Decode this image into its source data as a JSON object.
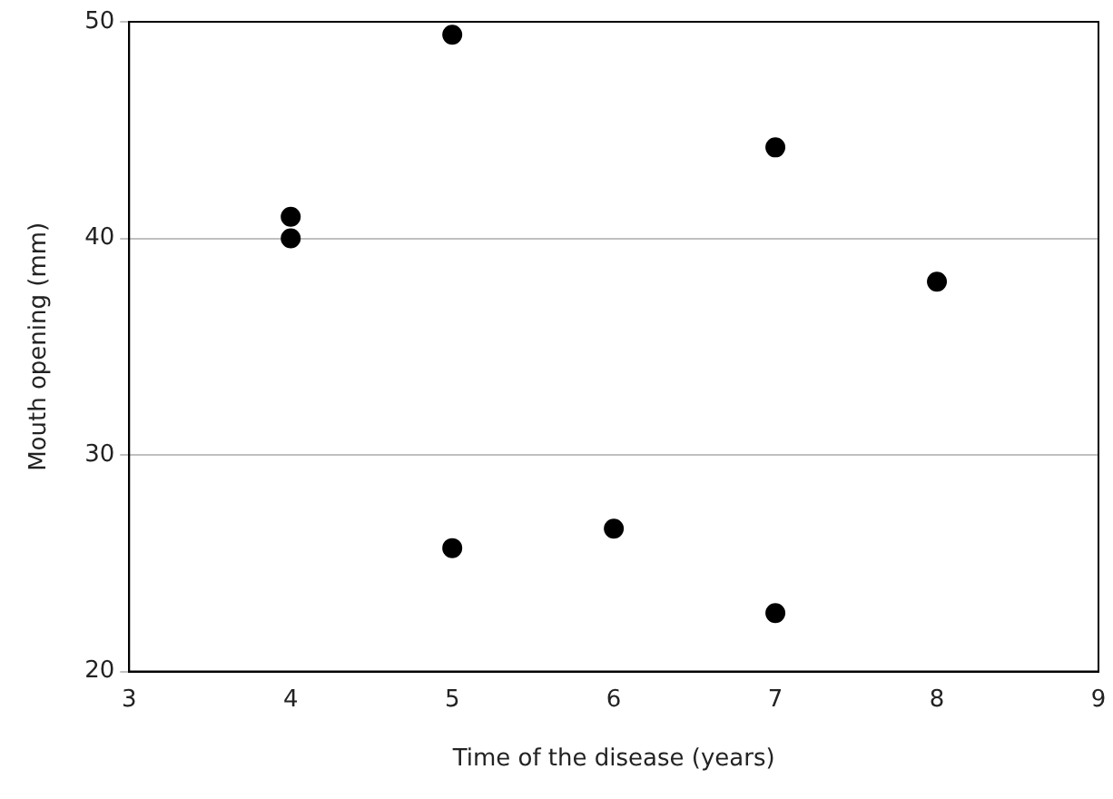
{
  "chart_data": {
    "type": "scatter",
    "xlabel": "Time of the disease (years)",
    "ylabel": "Mouth opening (mm)",
    "x": [
      4,
      4,
      5,
      5,
      6,
      7,
      7,
      8
    ],
    "series": [
      {
        "color": "#000000",
        "values": [
          41,
          40,
          49.4,
          25.7,
          26.6,
          44.2,
          22.7,
          38
        ]
      }
    ],
    "xlim": [
      3,
      9
    ],
    "xticks": [
      3,
      4,
      5,
      6,
      7,
      8,
      9
    ],
    "ylim": [
      20,
      50
    ],
    "yticks": [
      20,
      30,
      40,
      50
    ],
    "grid": "y",
    "legend": false,
    "marker": "circle"
  }
}
